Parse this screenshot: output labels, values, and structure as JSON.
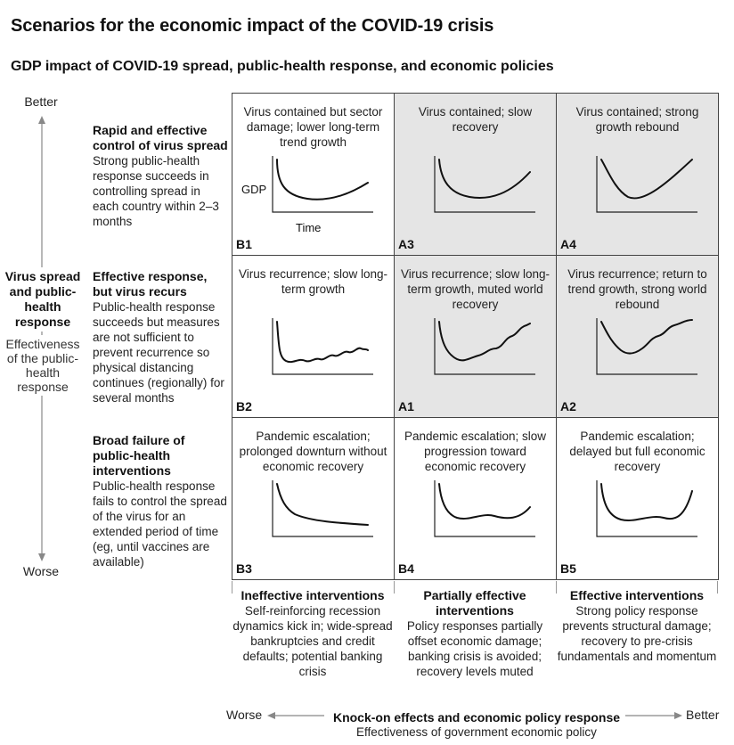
{
  "title": "Scenarios for the economic impact of the COVID-19 crisis",
  "subtitle": "GDP impact of COVID-19 spread, public-health response, and economic policies",
  "y_axis": {
    "top": "Better",
    "bottom": "Worse",
    "title": "Virus spread and public-health response",
    "subtitle": "Effectiveness of the public-health response"
  },
  "x_axis": {
    "left": "Worse",
    "right": "Better",
    "title": "Knock-on effects and economic policy response",
    "subtitle": "Effectiveness of government economic policy"
  },
  "rows": [
    {
      "heading": "Rapid and effective control of virus spread",
      "desc": "Strong public-health response succeeds in controlling spread in each country within 2–3 months"
    },
    {
      "heading": "Effective response, but virus recurs",
      "desc": "Public-health response succeeds but measures are not sufficient to prevent recurrence so physical distancing continues (regionally) for several months"
    },
    {
      "heading": "Broad failure of public-health interventions",
      "desc": "Public-health response fails to control the spread of the virus for an extended period of time (eg, until vaccines are available)"
    }
  ],
  "columns": [
    {
      "heading": "Ineffective interventions",
      "desc": "Self-reinforcing recession dynamics kick in; wide-spread bankruptcies and credit defaults; potential banking crisis"
    },
    {
      "heading": "Partially effective interventions",
      "desc": "Policy responses partially offset economic damage; banking crisis is avoided; recovery levels muted"
    },
    {
      "heading": "Effective interventions",
      "desc": "Strong policy response prevents structural damage; recovery to pre-crisis fundamentals and momentum"
    }
  ],
  "cells": [
    [
      {
        "code": "B1",
        "title": "Virus contained but sector damage; lower long-term trend growth",
        "shaded": false,
        "curve": "b1",
        "gdp_label": "GDP",
        "time_label": "Time"
      },
      {
        "code": "A3",
        "title": "Virus contained; slow recovery",
        "shaded": true,
        "curve": "a3"
      },
      {
        "code": "A4",
        "title": "Virus contained; strong growth rebound",
        "shaded": true,
        "curve": "a4"
      }
    ],
    [
      {
        "code": "B2",
        "title": "Virus recurrence; slow long-term growth",
        "shaded": false,
        "curve": "b2"
      },
      {
        "code": "A1",
        "title": "Virus recurrence; slow long-term growth, muted world recovery",
        "shaded": true,
        "curve": "a1"
      },
      {
        "code": "A2",
        "title": "Virus recurrence; return to trend growth, strong world rebound",
        "shaded": true,
        "curve": "a2"
      }
    ],
    [
      {
        "code": "B3",
        "title": "Pandemic escalation; prolonged downturn without economic recovery",
        "shaded": false,
        "curve": "b3"
      },
      {
        "code": "B4",
        "title": "Pandemic escalation; slow progression toward economic recovery",
        "shaded": false,
        "curve": "b4"
      },
      {
        "code": "B5",
        "title": "Pandemic escalation; delayed but full economic recovery",
        "shaded": false,
        "curve": "b5"
      }
    ]
  ],
  "colors": {
    "shaded_cell": "#e5e5e5",
    "line": "#111111",
    "axis": "#888888"
  }
}
